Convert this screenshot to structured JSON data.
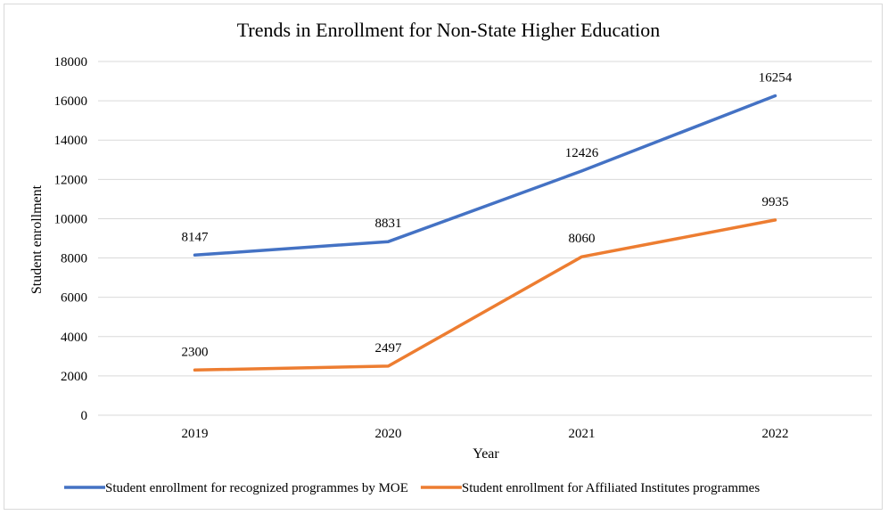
{
  "chart_data": {
    "type": "line",
    "title": "Trends in Enrollment for Non-State Higher Education",
    "xlabel": "Year",
    "ylabel": "Student enrollment",
    "categories": [
      "2019",
      "2020",
      "2021",
      "2022"
    ],
    "ylim": [
      0,
      18000
    ],
    "yticks": [
      0,
      2000,
      4000,
      6000,
      8000,
      10000,
      12000,
      14000,
      16000,
      18000
    ],
    "grid": true,
    "legend_position": "bottom",
    "series": [
      {
        "name": "Student enrollment for recognized programmes by MOE",
        "color": "#4472c4",
        "values": [
          8147,
          8831,
          12426,
          16254
        ]
      },
      {
        "name": "Student enrollment for Affiliated Institutes programmes",
        "color": "#ed7d31",
        "values": [
          2300,
          2497,
          8060,
          9935
        ]
      }
    ]
  }
}
